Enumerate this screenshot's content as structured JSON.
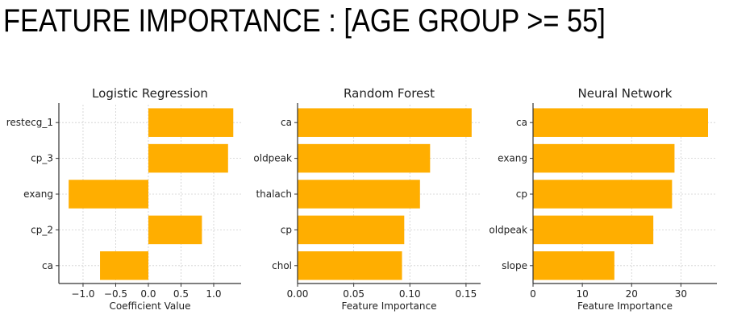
{
  "page": {
    "title": "FEATURE IMPORTANCE : [AGE GROUP >= 55]"
  },
  "colors": {
    "bar": "#FFAE00",
    "grid": "#cfcfcf",
    "axis": "#333333"
  },
  "chart_data": [
    {
      "type": "bar",
      "orientation": "horizontal",
      "title": "Logistic Regression",
      "xlabel": "Coefficient Value",
      "ylabel": "",
      "categories": [
        "restecg_1",
        "cp_3",
        "exang",
        "cp_2",
        "ca"
      ],
      "values": [
        1.3,
        1.22,
        -1.22,
        0.82,
        -0.74
      ],
      "xlim": [
        -1.37,
        1.42
      ],
      "xticks": [
        -1.0,
        -0.5,
        0.0,
        0.5,
        1.0
      ],
      "xtick_labels": [
        "−1.0",
        "−0.5",
        "0.0",
        "0.5",
        "1.0"
      ],
      "grid": true
    },
    {
      "type": "bar",
      "orientation": "horizontal",
      "title": "Random Forest",
      "xlabel": "Feature Importance",
      "ylabel": "",
      "categories": [
        "ca",
        "oldpeak",
        "thalach",
        "cp",
        "chol"
      ],
      "values": [
        0.155,
        0.118,
        0.109,
        0.095,
        0.093
      ],
      "xlim": [
        0,
        0.163
      ],
      "xticks": [
        0.0,
        0.05,
        0.1,
        0.15
      ],
      "xtick_labels": [
        "0.00",
        "0.05",
        "0.10",
        "0.15"
      ],
      "grid": true
    },
    {
      "type": "bar",
      "orientation": "horizontal",
      "title": "Neural Network",
      "xlabel": "Feature Importance",
      "ylabel": "",
      "categories": [
        "ca",
        "exang",
        "cp",
        "oldpeak",
        "slope"
      ],
      "values": [
        35.5,
        28.7,
        28.2,
        24.4,
        16.5
      ],
      "xlim": [
        0,
        37.3
      ],
      "xticks": [
        0,
        10,
        20,
        30
      ],
      "xtick_labels": [
        "0",
        "10",
        "20",
        "30"
      ],
      "grid": true
    }
  ]
}
